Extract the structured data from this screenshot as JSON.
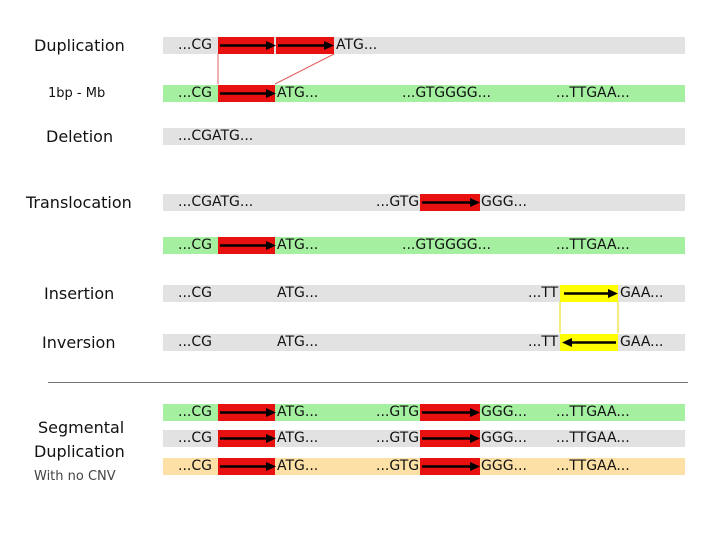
{
  "labels": {
    "duplication": "Duplication",
    "size_range": "1bp - Mb",
    "deletion": "Deletion",
    "translocation": "Translocation",
    "insertion": "Insertion",
    "inversion": "Inversion",
    "segmental_1": "Segmental",
    "segmental_2": "Duplication",
    "no_cnv": "With no CNV"
  },
  "seq": {
    "dup_cg": "...CG",
    "dup_atg": "ATG...",
    "ref_cg": "...CG",
    "ref_atg": "ATG...",
    "ref_gtgggg": "...GTGGGG...",
    "ref_ttgaa": "...TTGAA...",
    "del_cgatg": "...CGATG...",
    "trans_cgatg": "...CGATG...",
    "trans_gtg": "...GTG",
    "trans_ggg": "GGG...",
    "ref2_cg": "...CG",
    "ref2_atg": "ATG...",
    "ref2_gtgggg": "...GTGGGG...",
    "ref2_ttgaa": "...TTGAA...",
    "ins_cg": "...CG",
    "ins_atg": "ATG...",
    "ins_tt": "...TT",
    "ins_gaa": "GAA...",
    "inv_cg": "...CG",
    "inv_atg": "ATG...",
    "inv_tt": "...TT",
    "inv_gaa": "GAA...",
    "sd1_cg": "...CG",
    "sd1_atg": "ATG...",
    "sd1_gtg": "...GTG",
    "sd1_ggg": "GGG...",
    "sd1_ttgaa": "...TTGAA...",
    "sd2_cg": "...CG",
    "sd2_atg": "ATG...",
    "sd2_gtg": "...GTG",
    "sd2_ggg": "GGG...",
    "sd2_ttgaa": "...TTGAA...",
    "sd3_cg": "...CG",
    "sd3_atg": "ATG...",
    "sd3_gtg": "...GTG",
    "sd3_ggg": "GGG...",
    "sd3_ttgaa": "...TTGAA..."
  },
  "colors": {
    "gray_bar": "#e2e2e2",
    "green_bar": "#a4f0a0",
    "orange_bar": "#fde0a6",
    "red_block": "#e8110f",
    "yellow_block": "#ffff00"
  }
}
